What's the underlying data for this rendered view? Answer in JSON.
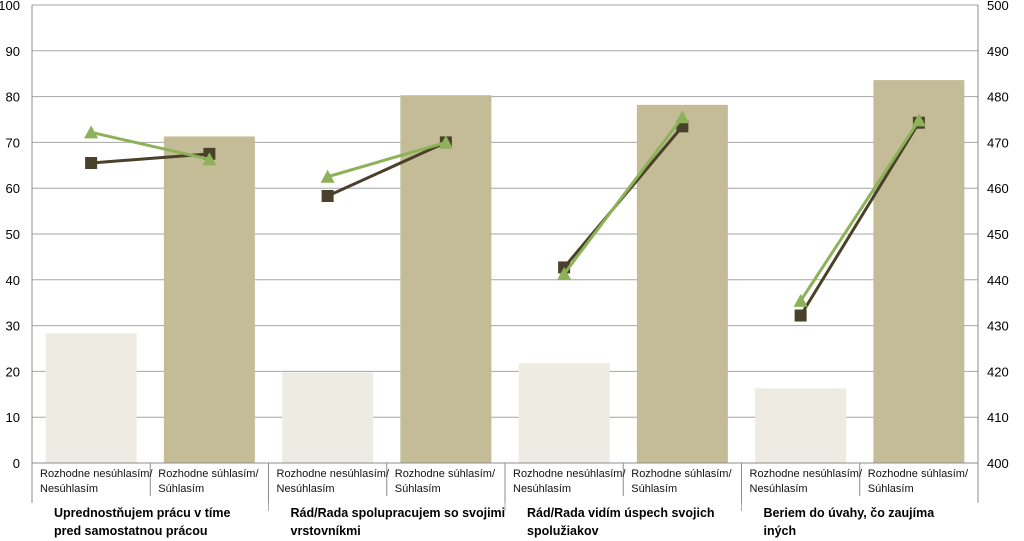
{
  "chart_data": {
    "type": "bar",
    "title": "",
    "xlabel": "",
    "ylabel": "",
    "y2label": "",
    "ylim": [
      0,
      100
    ],
    "y_ticks": [
      0,
      10,
      20,
      30,
      40,
      50,
      60,
      70,
      80,
      90,
      100
    ],
    "y2lim": [
      400,
      500
    ],
    "y2_ticks": [
      400,
      410,
      420,
      430,
      440,
      450,
      460,
      470,
      480,
      490,
      500
    ],
    "grid": true,
    "legend": "none",
    "groups": [
      {
        "label": "Uprednostňujem prácu v tíme pred samostatnou prácou",
        "label_lines": [
          "Uprednostňujem prácu v tíme",
          "pred samostatnou prácou"
        ],
        "categories": [
          {
            "lines": [
              "Rozhodne nesúhlasím/",
              "Nesúhlasím"
            ]
          },
          {
            "lines": [
              "Rozhodne súhlasím/",
              "Súhlasím"
            ]
          }
        ]
      },
      {
        "label": "Rád/Rada spolupracujem so svojimi vrstovníkmi",
        "label_lines": [
          "Rád/Rada spolupracujem so svojimi",
          "vrstovníkmi"
        ],
        "categories": [
          {
            "lines": [
              "Rozhodne nesúhlasím/",
              "Nesúhlasím"
            ]
          },
          {
            "lines": [
              "Rozhodne súhlasím/",
              "Súhlasím"
            ]
          }
        ]
      },
      {
        "label": "Rád/Rada vidím úspech svojich spolužiakov",
        "label_lines": [
          "Rád/Rada vidím úspech svojich",
          "spolužiakov"
        ],
        "categories": [
          {
            "lines": [
              "Rozhodne nesúhlasím/",
              "Nesúhlasím"
            ]
          },
          {
            "lines": [
              "Rozhodne súhlasím/",
              "Súhlasím"
            ]
          }
        ]
      },
      {
        "label": "Beriem do úvahy, čo zaujíma iných",
        "label_lines": [
          "Beriem do úvahy, čo zaujíma",
          "iných"
        ],
        "categories": [
          {
            "lines": [
              "Rozhodne nesúhlasím/",
              "Nesúhlasím"
            ]
          },
          {
            "lines": [
              "Rozhodne súhlasím/",
              "Súhlasím"
            ]
          }
        ]
      }
    ],
    "series": [
      {
        "type": "bar",
        "axis": "left",
        "colors": [
          "#edebe2",
          "#c4bc97"
        ],
        "values": [
          [
            28.3,
            71.3
          ],
          [
            19.8,
            80.3
          ],
          [
            21.8,
            78.2
          ],
          [
            16.3,
            83.6
          ]
        ]
      },
      {
        "type": "line",
        "axis": "right",
        "marker": "square",
        "color": "#4a412a",
        "values": [
          [
            465.5,
            467.5
          ],
          [
            458.3,
            470.0
          ],
          [
            442.7,
            473.5
          ],
          [
            432.2,
            474.3
          ]
        ]
      },
      {
        "type": "line",
        "axis": "right",
        "marker": "triangle",
        "color": "#8db25a",
        "values": [
          [
            472.2,
            466.3
          ],
          [
            462.5,
            470.0
          ],
          [
            441.3,
            475.5
          ],
          [
            435.4,
            474.8
          ]
        ]
      }
    ]
  }
}
